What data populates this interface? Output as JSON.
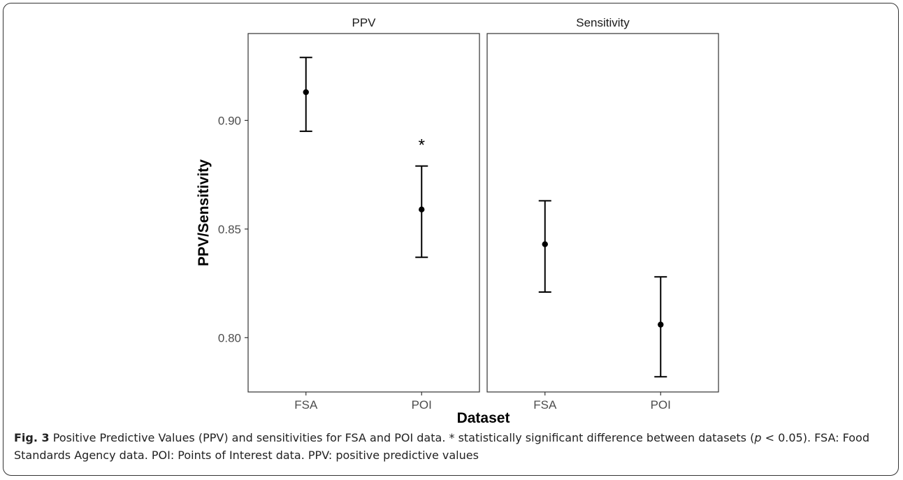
{
  "chart_data": {
    "type": "scatter",
    "subtype": "point-with-errorbars, faceted",
    "ylabel": "PPV/Sensitivity",
    "xlabel": "Dataset",
    "ylim": [
      0.775,
      0.94
    ],
    "yticks": [
      0.8,
      0.85,
      0.9
    ],
    "ytick_labels": [
      "0.80",
      "0.85",
      "0.90"
    ],
    "categories": [
      "FSA",
      "POI"
    ],
    "grid": false,
    "facets": [
      {
        "name": "PPV",
        "points": [
          {
            "x": "FSA",
            "y": 0.913,
            "lower": 0.895,
            "upper": 0.929
          },
          {
            "x": "POI",
            "y": 0.859,
            "lower": 0.837,
            "upper": 0.879,
            "annotation": "*"
          }
        ]
      },
      {
        "name": "Sensitivity",
        "points": [
          {
            "x": "FSA",
            "y": 0.843,
            "lower": 0.821,
            "upper": 0.863
          },
          {
            "x": "POI",
            "y": 0.806,
            "lower": 0.782,
            "upper": 0.828
          }
        ]
      }
    ]
  },
  "caption": {
    "label": "Fig. 3",
    "text_before_p": "Positive Predictive Values (PPV) and sensitivities for FSA and POI data. * statistically significant difference between datasets (",
    "p_symbol": "p",
    "text_after_p": " < 0.05). FSA: Food Standards Agency data. POI: Points of Interest data. PPV: positive predictive values"
  }
}
